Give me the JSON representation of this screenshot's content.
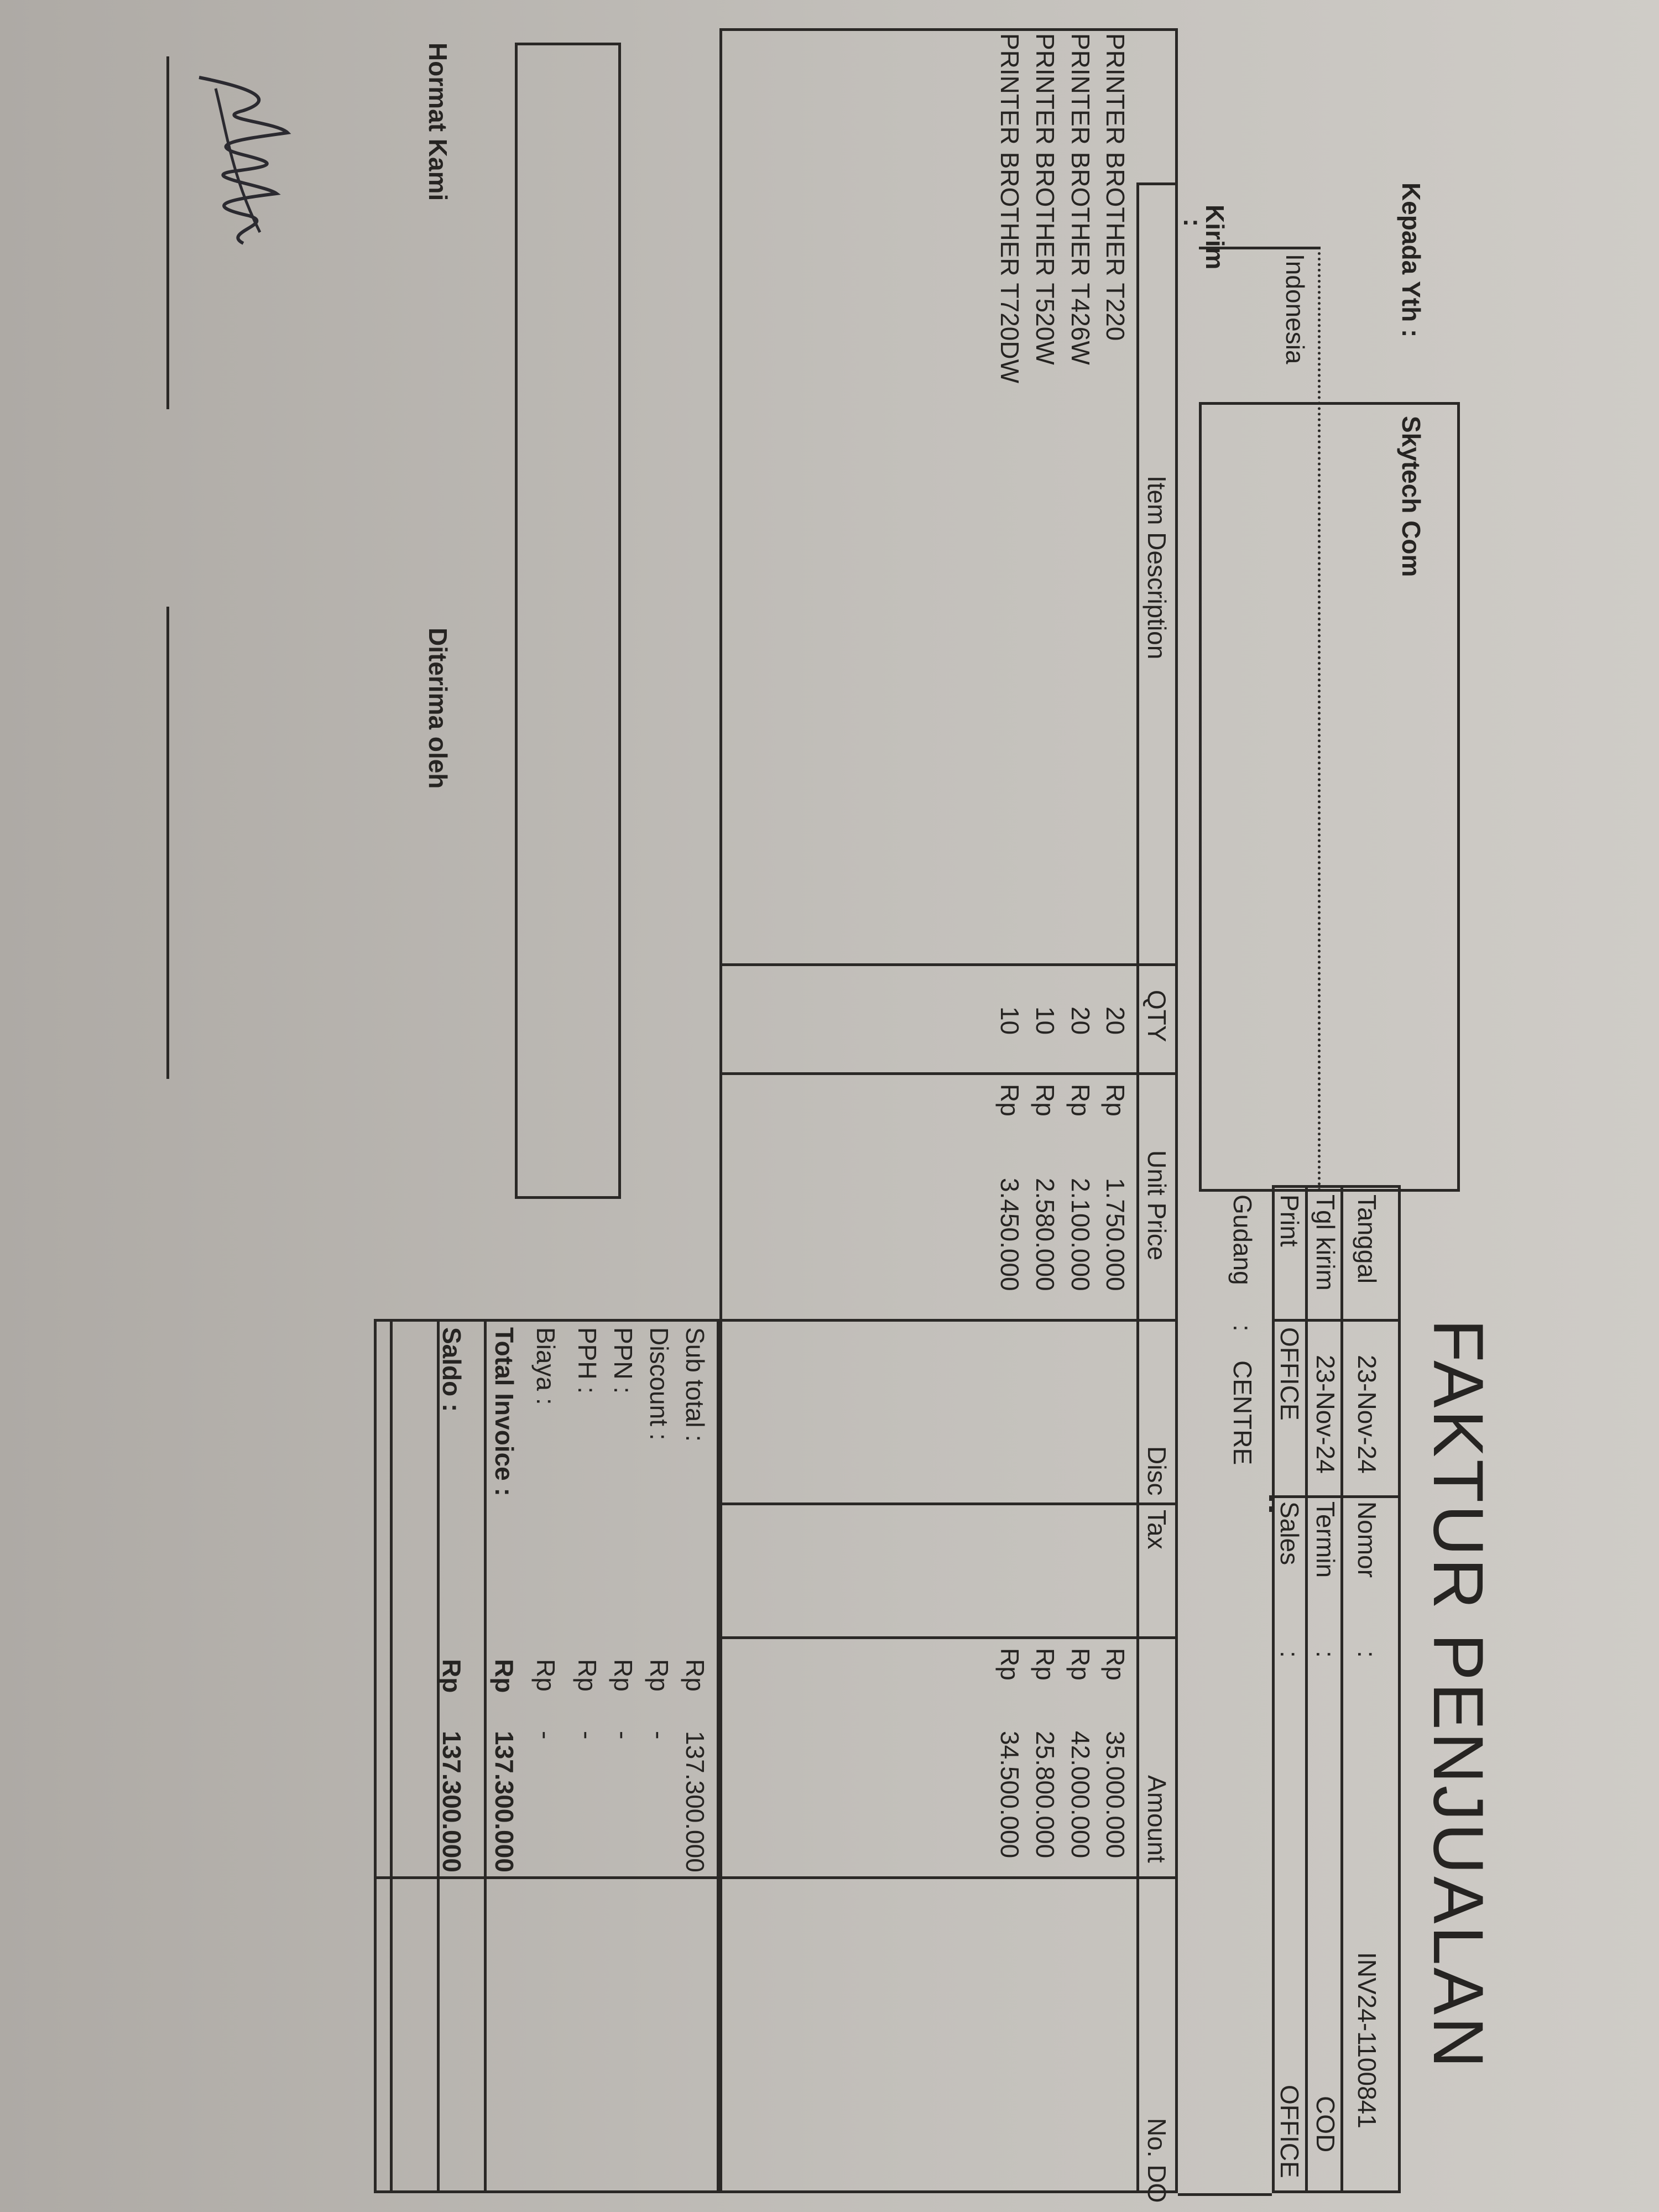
{
  "title": "FAKTUR PENJUALAN",
  "customer": {
    "label": "Kepada Yth :",
    "name": "Skytech Com",
    "address": "Indonesia",
    "ship_label": "Kirim",
    "ship_colon": ":"
  },
  "header": {
    "tanggal_label": "Tanggal",
    "tanggal": "23-Nov-24",
    "nomor_label": "Nomor",
    "nomor": "INV24-1100841",
    "tgl_kirim_label": "Tgl kirim",
    "tgl_kirim": "23-Nov-24",
    "termin_label": "Termin",
    "termin": "COD",
    "print_label": "Print",
    "print": "OFFICE",
    "sales_label": "Sales",
    "sales": "OFFICE",
    "gudang_label": "Gudang",
    "gudang": "CENTRE",
    "colon": ":"
  },
  "table": {
    "columns": [
      "Item Description",
      "QTY",
      "Unit Price",
      "Disc",
      "Tax",
      "Amount",
      "No. DO"
    ],
    "rows": [
      {
        "item": "PRINTER BROTHER T220",
        "qty": "20",
        "cur": "Rp",
        "price": "1.750.000",
        "amount_cur": "Rp",
        "amount": "35.000.000"
      },
      {
        "item": "PRINTER BROTHER T426W",
        "qty": "20",
        "cur": "Rp",
        "price": "2.100.000",
        "amount_cur": "Rp",
        "amount": "42.000.000"
      },
      {
        "item": "PRINTER BROTHER T520W",
        "qty": "10",
        "cur": "Rp",
        "price": "2.580.000",
        "amount_cur": "Rp",
        "amount": "25.800.000"
      },
      {
        "item": "PRINTER BROTHER T720DW",
        "qty": "10",
        "cur": "Rp",
        "price": "3.450.000",
        "amount_cur": "Rp",
        "amount": "34.500.000"
      }
    ]
  },
  "totals": [
    {
      "label": "Sub total :",
      "cur": "Rp",
      "value": "137.300.000"
    },
    {
      "label": "Discount :",
      "cur": "Rp",
      "value": "-"
    },
    {
      "label": "PPN  :",
      "cur": "Rp",
      "value": "-"
    },
    {
      "label": "PPH  :",
      "cur": "Rp",
      "value": "-"
    },
    {
      "label": "Biaya     :",
      "cur": "Rp",
      "value": "-"
    },
    {
      "label": "Total Invoice :",
      "cur": "Rp",
      "value": "137.300.000"
    },
    {
      "label": "Saldo   :",
      "cur": "Rp",
      "value": "137.300.000"
    }
  ],
  "footer": {
    "hormat": "Hormat Kami",
    "diterima": "Diterima oleh"
  },
  "colors": {
    "paper": "#c3c0bb",
    "ink": "#262422"
  }
}
